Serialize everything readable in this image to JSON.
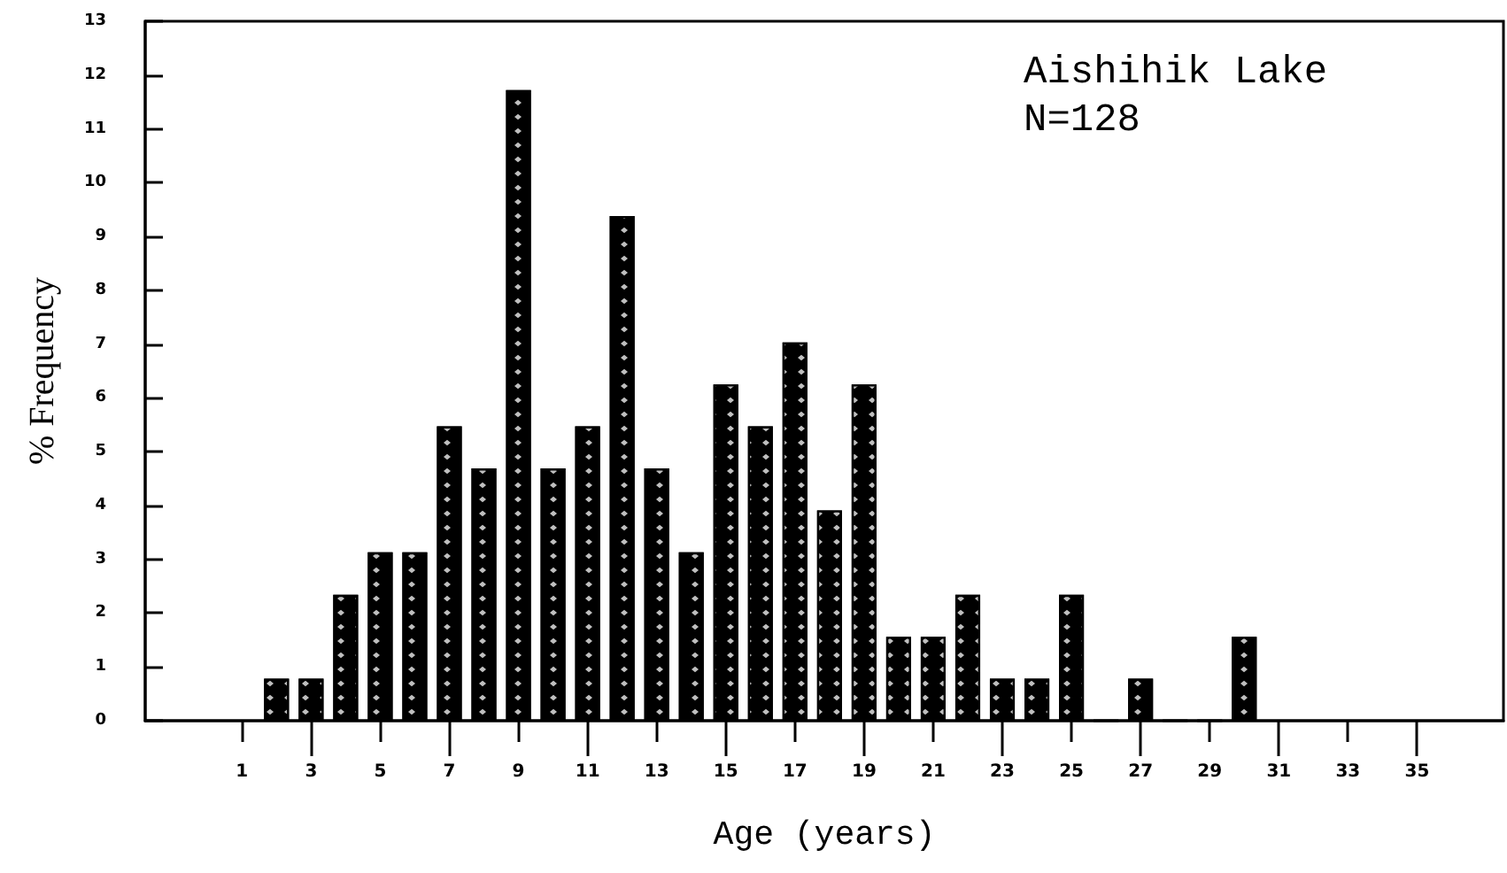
{
  "chart_data": {
    "type": "bar",
    "xlabel": "Age (years)",
    "ylabel": "% Frequency",
    "annotations": [
      "Aishihik Lake",
      "N=128"
    ],
    "x": [
      2,
      3,
      4,
      5,
      6,
      7,
      8,
      9,
      10,
      11,
      12,
      13,
      14,
      15,
      16,
      17,
      18,
      19,
      20,
      21,
      22,
      23,
      24,
      25,
      26,
      27,
      28,
      29,
      30
    ],
    "values": [
      0.78,
      0.78,
      2.34,
      3.13,
      3.13,
      5.47,
      4.69,
      11.72,
      4.69,
      5.47,
      9.38,
      4.69,
      3.13,
      6.25,
      5.47,
      7.03,
      3.91,
      6.25,
      1.56,
      1.56,
      2.34,
      0.78,
      0.78,
      2.34,
      0,
      0.78,
      0,
      0,
      1.56
    ],
    "color": "#000000",
    "xlim": [
      -1.8,
      37.5
    ],
    "xticks": [
      1,
      3,
      5,
      7,
      9,
      11,
      13,
      15,
      17,
      19,
      21,
      23,
      25,
      27,
      29,
      31,
      33,
      35
    ],
    "ylim": [
      0,
      13
    ],
    "yticks": [
      0,
      1,
      2,
      3,
      4,
      5,
      6,
      7,
      8,
      9,
      10,
      11,
      12,
      13
    ],
    "grid": false
  }
}
